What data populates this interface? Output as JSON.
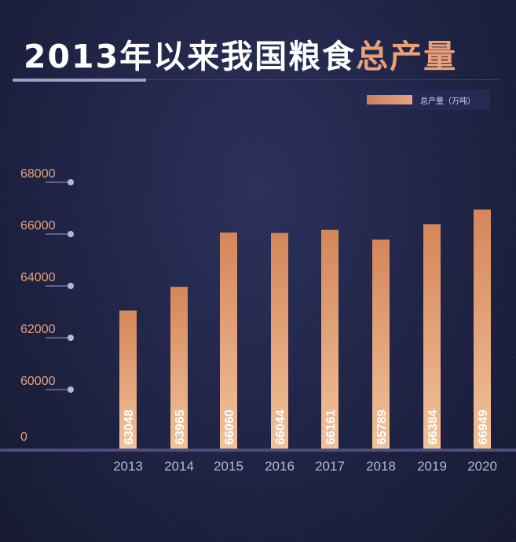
{
  "title_parts": {
    "white": "2013年以来我国粮食",
    "orange": "总产量"
  },
  "legend": {
    "label": "总产量（万吨）"
  },
  "colors": {
    "bar_top": "#d4865a",
    "bar_bottom": "#f2c29b",
    "tick_text": "#e8a07a",
    "year_text": "#b5b8d6",
    "baseline": "#4a4f7d"
  },
  "chart_data": {
    "type": "bar",
    "categories": [
      "2013",
      "2014",
      "2015",
      "2016",
      "2017",
      "2018",
      "2019",
      "2020"
    ],
    "series": [
      {
        "name": "总产量（万吨）",
        "values": [
          63048,
          63965,
          66060,
          66044,
          66161,
          65789,
          66384,
          66949
        ]
      }
    ],
    "data_labels": [
      "63048",
      "63965",
      "66060",
      "66044",
      "66161",
      "65789",
      "66384",
      "66949"
    ],
    "y_ticks": [
      "0",
      "60000",
      "62000",
      "64000",
      "66000",
      "68000"
    ],
    "ylim": [
      58000,
      68000
    ],
    "axis_break": true,
    "title": "2013年以来我国粮食总产量",
    "xlabel": "",
    "ylabel": ""
  }
}
